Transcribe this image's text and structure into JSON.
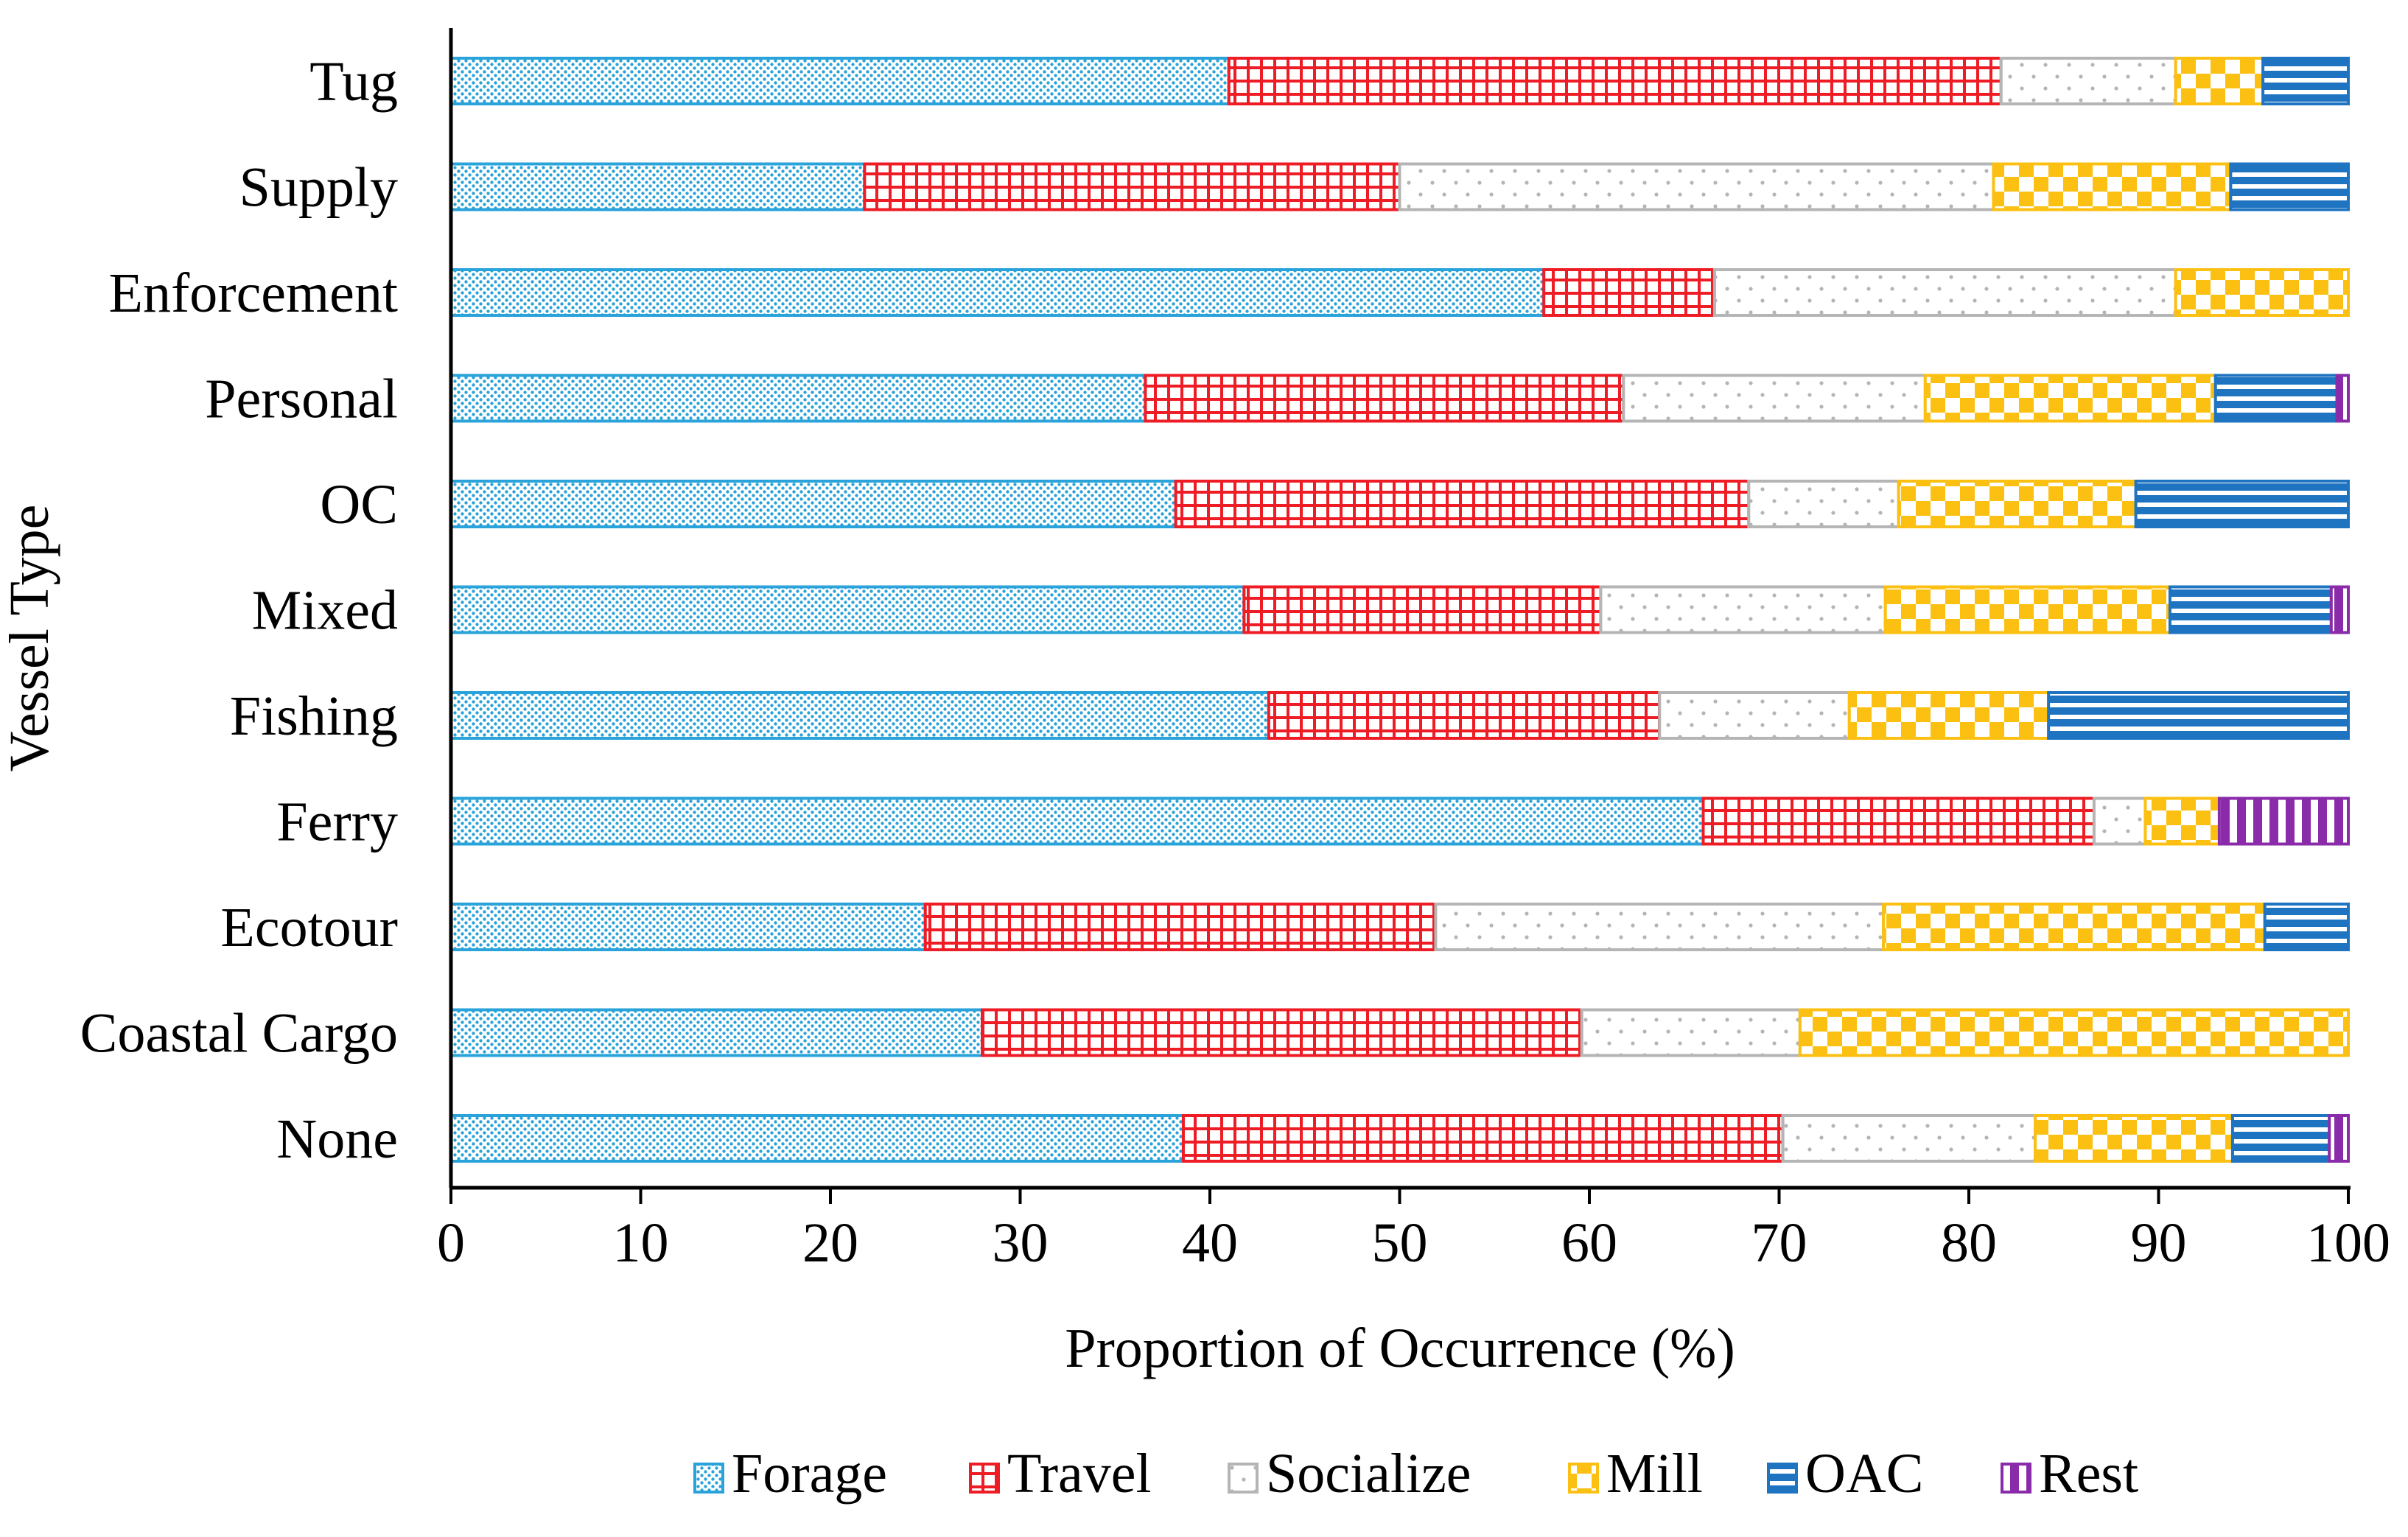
{
  "chart_data": {
    "type": "bar",
    "orientation": "horizontal",
    "stacked": true,
    "title": "",
    "xlabel": "Proportion of Occurrence (%)",
    "ylabel": "Vessel Type",
    "xlim": [
      0,
      100
    ],
    "xticks": [
      0,
      10,
      20,
      30,
      40,
      50,
      60,
      70,
      80,
      90,
      100
    ],
    "grid": false,
    "legend_position": "bottom",
    "categories": [
      "Tug",
      "Supply",
      "Enforcement",
      "Personal",
      "OC",
      "Mixed",
      "Fishing",
      "Ferry",
      "Ecotour",
      "Coastal Cargo",
      "None"
    ],
    "series": [
      {
        "name": "Forage",
        "color": "#29A3DA",
        "pattern": "dots",
        "values": [
          41.0,
          21.8,
          57.6,
          36.6,
          38.2,
          41.8,
          43.1,
          66.0,
          25.0,
          28.0,
          38.6
        ]
      },
      {
        "name": "Travel",
        "color": "#EE1C25",
        "pattern": "grid",
        "values": [
          40.7,
          28.2,
          9.0,
          25.2,
          30.2,
          18.8,
          20.6,
          20.6,
          26.9,
          31.6,
          31.6
        ]
      },
      {
        "name": "Socialize",
        "color": "#B5B5B5",
        "pattern": "sparse-dots",
        "values": [
          9.2,
          31.3,
          24.3,
          15.9,
          7.9,
          15.0,
          10.0,
          2.7,
          23.6,
          11.5,
          13.3
        ]
      },
      {
        "name": "Mill",
        "color": "#FBC012",
        "pattern": "checker",
        "values": [
          4.6,
          12.5,
          9.1,
          15.3,
          12.5,
          15.0,
          10.5,
          3.9,
          20.1,
          28.9,
          10.4
        ]
      },
      {
        "name": "OAC",
        "color": "#1F74C2",
        "pattern": "hlines",
        "values": [
          4.5,
          6.2,
          0,
          6.4,
          11.2,
          8.5,
          15.8,
          0,
          4.4,
          0,
          5.1
        ]
      },
      {
        "name": "Rest",
        "color": "#8A2BAA",
        "pattern": "vlines",
        "values": [
          0,
          0,
          0,
          0.6,
          0,
          0.9,
          0,
          6.8,
          0,
          0,
          1.0
        ]
      }
    ]
  }
}
